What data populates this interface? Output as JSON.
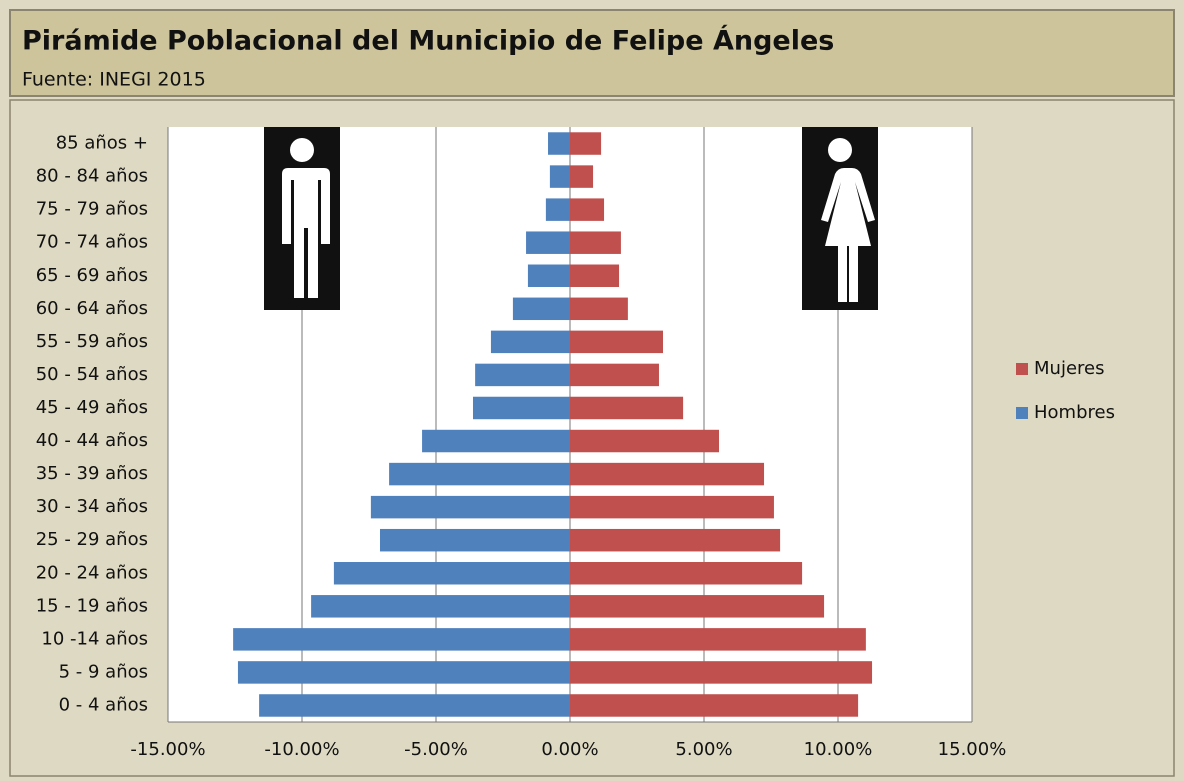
{
  "chart_data": {
    "type": "bar",
    "orientation": "horizontal",
    "stacked": true,
    "title": "Pirámide Poblacional del Municipio de Felipe Ángeles",
    "subtitle": "Fuente: INEGI 2015",
    "categories": [
      "85 años +",
      "80 - 84 años",
      "75 - 79 años",
      "70 - 74 años",
      "65 - 69 años",
      "60 - 64 años",
      "55 - 59 años",
      "50 - 54 años",
      "45 - 49 años",
      "40 - 44 años",
      "35 - 39 años",
      "30 - 34 años",
      "25 - 29 años",
      "20 - 24 años",
      "15 - 19 años",
      "10 -14 años",
      "5 - 9 años",
      "0 - 4 años"
    ],
    "series": [
      {
        "name": "Mujeres",
        "color": "#c0504d",
        "values": [
          1.16,
          0.86,
          1.27,
          1.9,
          1.83,
          2.16,
          3.47,
          3.32,
          4.22,
          5.56,
          7.24,
          7.61,
          7.84,
          8.66,
          9.48,
          11.04,
          11.27,
          10.75
        ]
      },
      {
        "name": "Hombres",
        "color": "#4f81bd",
        "values": [
          -0.82,
          -0.75,
          -0.9,
          -1.64,
          -1.57,
          -2.13,
          -2.95,
          -3.54,
          -3.62,
          -5.52,
          -6.75,
          -7.43,
          -7.09,
          -8.81,
          -9.66,
          -12.57,
          -12.39,
          -11.6
        ]
      }
    ],
    "xlim": [
      -15,
      15
    ],
    "xticks": [
      {
        "value": -15,
        "label": "-15.00%"
      },
      {
        "value": -10,
        "label": "-10.00%"
      },
      {
        "value": -5,
        "label": "-5.00%"
      },
      {
        "value": 0,
        "label": "0.00%"
      },
      {
        "value": 5,
        "label": "5.00%"
      },
      {
        "value": 10,
        "label": "10.00%"
      },
      {
        "value": 15,
        "label": "15.00%"
      }
    ],
    "grid": true,
    "legend": "right"
  }
}
